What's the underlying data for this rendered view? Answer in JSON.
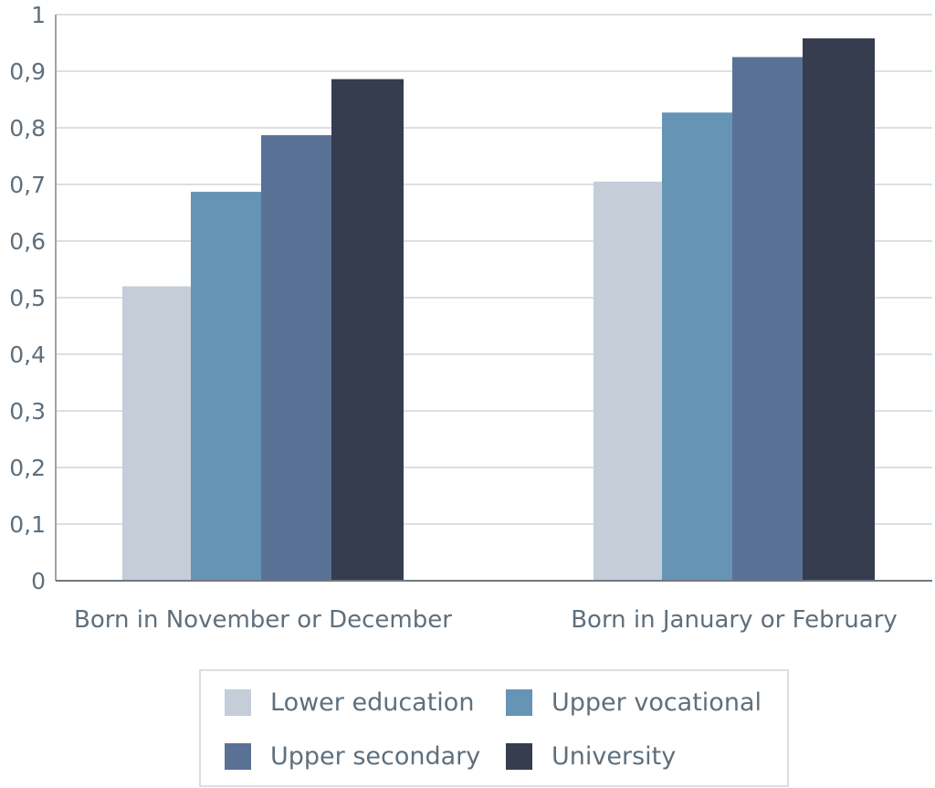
{
  "chart_data": {
    "type": "bar",
    "categories": [
      "Born in November or December",
      "Born in January or February"
    ],
    "series": [
      {
        "name": "Lower education",
        "color": "#c4cdd8",
        "values": [
          0.52,
          0.705
        ]
      },
      {
        "name": "Upper vocational",
        "color": "#6594b5",
        "values": [
          0.687,
          0.827
        ]
      },
      {
        "name": "Upper secondary",
        "color": "#5a7196",
        "values": [
          0.787,
          0.925
        ]
      },
      {
        "name": "University",
        "color": "#353d4e",
        "values": [
          0.886,
          0.958
        ]
      }
    ],
    "yticks": [
      "0",
      "0,1",
      "0,2",
      "0,3",
      "0,4",
      "0,5",
      "0,6",
      "0,7",
      "0,8",
      "0,9",
      "1"
    ],
    "ylim": [
      0,
      1
    ],
    "grid": true,
    "legend": "bottom"
  }
}
